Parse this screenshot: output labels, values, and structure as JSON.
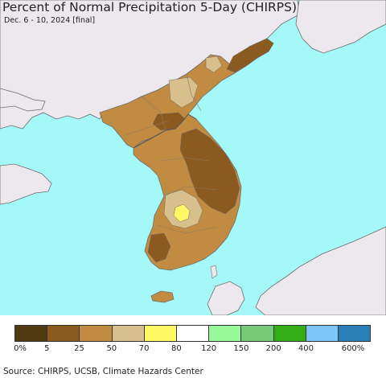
{
  "header": {
    "title": "Percent of Normal Precipitation 5-Day (CHIRPS)",
    "subtitle": "Dec. 6 - 10, 2024 [final]"
  },
  "map": {
    "ocean_color": "#a5f8f8",
    "foreign_land_color": "#ede8ee",
    "border_color": "#6d6d6d"
  },
  "legend": {
    "swatches": [
      {
        "color": "#4f3911",
        "range": "0-5"
      },
      {
        "color": "#8b5a1e",
        "range": "5-25"
      },
      {
        "color": "#c28b42",
        "range": "25-50"
      },
      {
        "color": "#d8c08c",
        "range": "50-70"
      },
      {
        "color": "#fff865",
        "range": "70-80"
      },
      {
        "color": "#ffffff",
        "range": "80-120"
      },
      {
        "color": "#97f999",
        "range": "120-150"
      },
      {
        "color": "#79ca79",
        "range": "150-200"
      },
      {
        "color": "#35ad14",
        "range": "200-400"
      },
      {
        "color": "#7dc6f8",
        "range": "400-600"
      },
      {
        "color": "#2a7fb8",
        "range": "600+"
      }
    ],
    "labels": [
      "0%",
      "5",
      "25",
      "50",
      "70",
      "80",
      "120",
      "150",
      "200",
      "400",
      "600%"
    ]
  },
  "footer": {
    "source": "Source: CHIRPS, UCSB, Climate Hazards Center"
  }
}
